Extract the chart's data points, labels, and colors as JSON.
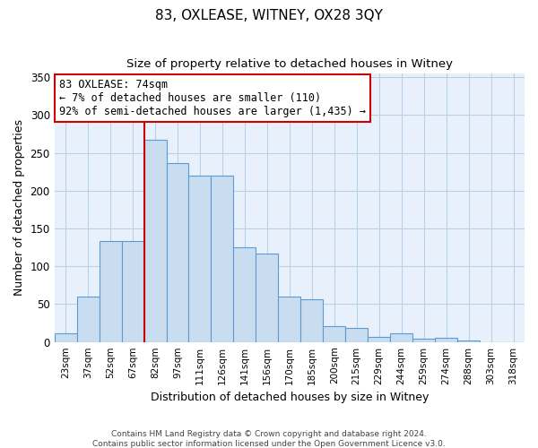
{
  "title": "83, OXLEASE, WITNEY, OX28 3QY",
  "subtitle": "Size of property relative to detached houses in Witney",
  "xlabel": "Distribution of detached houses by size in Witney",
  "ylabel": "Number of detached properties",
  "bar_labels": [
    "23sqm",
    "37sqm",
    "52sqm",
    "67sqm",
    "82sqm",
    "97sqm",
    "111sqm",
    "126sqm",
    "141sqm",
    "156sqm",
    "170sqm",
    "185sqm",
    "200sqm",
    "215sqm",
    "229sqm",
    "244sqm",
    "259sqm",
    "274sqm",
    "288sqm",
    "303sqm",
    "318sqm"
  ],
  "bar_values": [
    11,
    60,
    133,
    133,
    267,
    236,
    220,
    220,
    125,
    117,
    60,
    56,
    21,
    18,
    7,
    11,
    4,
    6,
    2,
    0,
    0
  ],
  "bar_color": "#c9ddf0",
  "bar_edge_color": "#5b9bd5",
  "vline_x": 3.5,
  "vline_color": "#cc0000",
  "annotation_text": "83 OXLEASE: 74sqm\n← 7% of detached houses are smaller (110)\n92% of semi-detached houses are larger (1,435) →",
  "annotation_box_color": "#ffffff",
  "annotation_box_edge": "#cc0000",
  "footer1": "Contains HM Land Registry data © Crown copyright and database right 2024.",
  "footer2": "Contains public sector information licensed under the Open Government Licence v3.0.",
  "ylim": [
    0,
    355
  ],
  "yticks": [
    0,
    50,
    100,
    150,
    200,
    250,
    300,
    350
  ],
  "bg_color": "#e8f1fb",
  "plot_bg": "#ffffff",
  "grid_color": "#b8d0ea",
  "title_fontsize": 11,
  "subtitle_fontsize": 9.5
}
